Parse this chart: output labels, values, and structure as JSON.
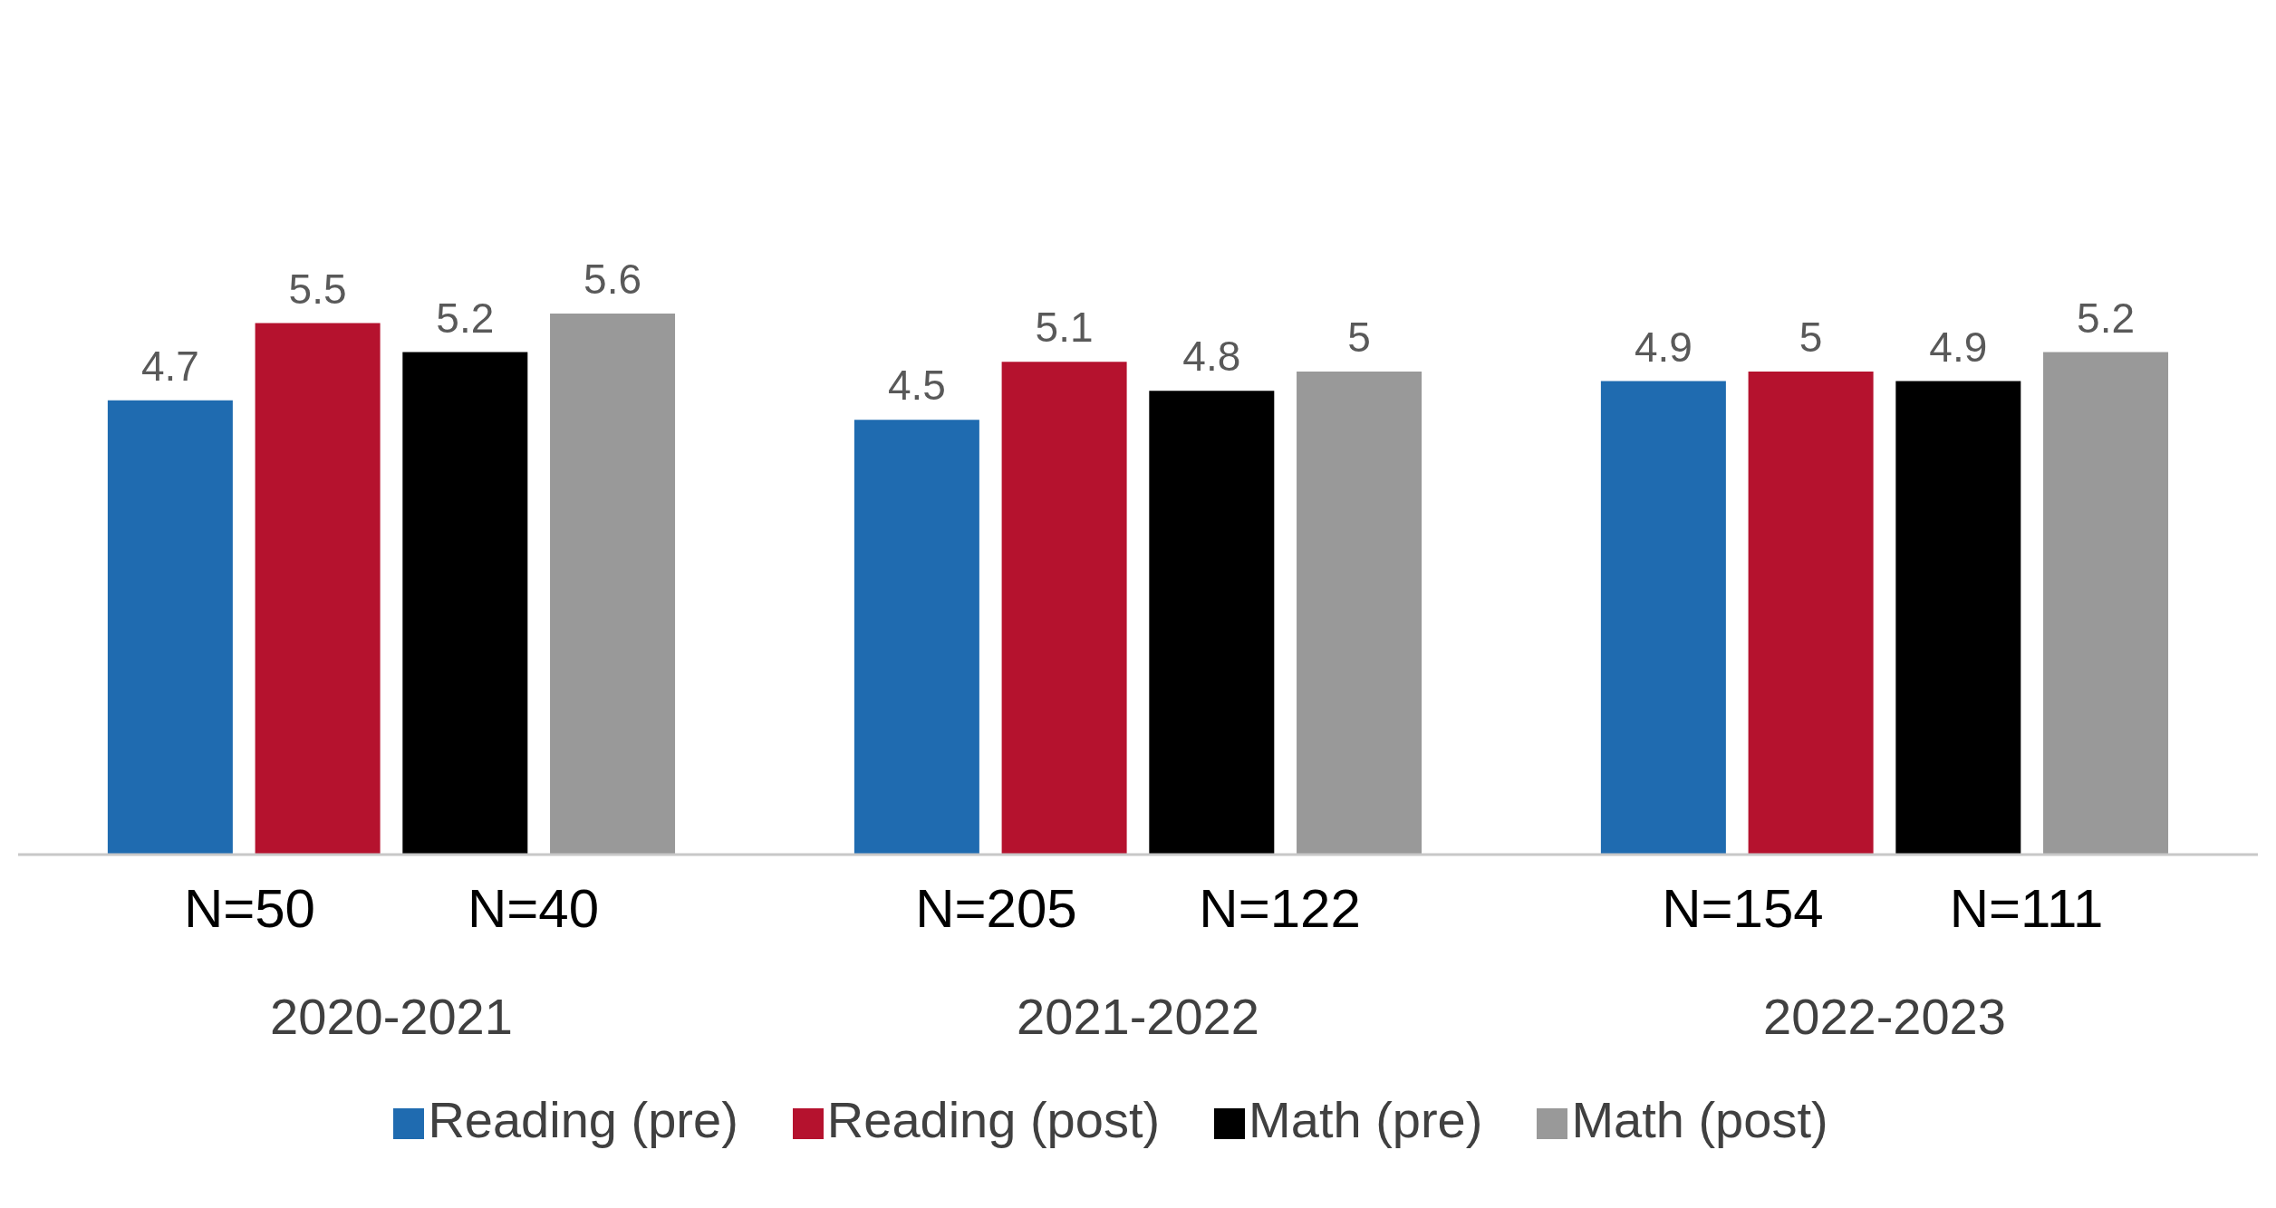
{
  "chart_data": {
    "type": "bar",
    "categories": [
      "2020-2021",
      "2021-2022",
      "2022-2023"
    ],
    "series": [
      {
        "name": "Reading (pre)",
        "color": "#1f6bb0",
        "values": [
          4.7,
          4.5,
          4.9
        ]
      },
      {
        "name": "Reading (post)",
        "color": "#b5122e",
        "values": [
          5.5,
          5.1,
          5
        ]
      },
      {
        "name": "Math (pre)",
        "color": "#000000",
        "values": [
          5.2,
          4.8,
          4.9
        ]
      },
      {
        "name": "Math (post)",
        "color": "#999999",
        "values": [
          5.6,
          5,
          5.2
        ]
      }
    ],
    "data_labels": true,
    "grid": false,
    "legend": "bottom",
    "annotations": [
      "N=50",
      "N=40",
      "N=205",
      "N=122",
      "N=154",
      "N=111"
    ]
  }
}
